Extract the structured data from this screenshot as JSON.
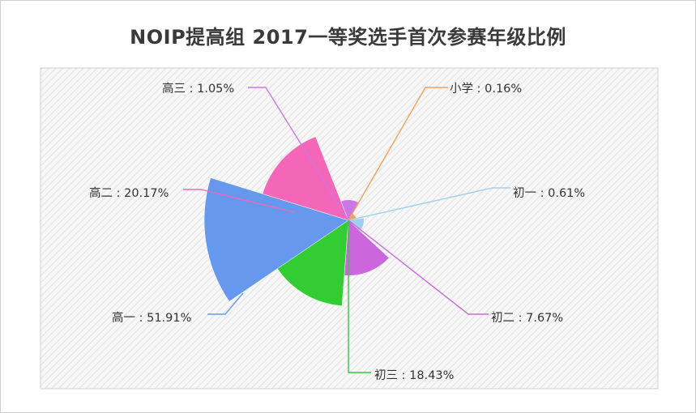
{
  "chart_data": {
    "type": "pie",
    "variant": "rose",
    "title": "NOIP提高组 2017一等奖选手首次参赛年级比例",
    "slices": [
      {
        "name": "小学",
        "value": 0.16,
        "label": "小学 : 0.16%",
        "color": "#f4a15c"
      },
      {
        "name": "初一",
        "value": 0.61,
        "label": "初一 : 0.61%",
        "color": "#9fcff0"
      },
      {
        "name": "初二",
        "value": 7.67,
        "label": "初二 : 7.67%",
        "color": "#cc66dd"
      },
      {
        "name": "初三",
        "value": 18.43,
        "label": "初三 : 18.43%",
        "color": "#33cc33"
      },
      {
        "name": "高一",
        "value": 51.91,
        "label": "高一 : 51.91%",
        "color": "#6699ee"
      },
      {
        "name": "高二",
        "value": 20.17,
        "label": "高二 : 20.17%",
        "color": "#f466b8"
      },
      {
        "name": "高三",
        "value": 1.05,
        "label": "高三 : 1.05%",
        "color": "#cc77e8"
      }
    ],
    "legend": "none",
    "grid": false,
    "background": "diagonal-hatch"
  }
}
